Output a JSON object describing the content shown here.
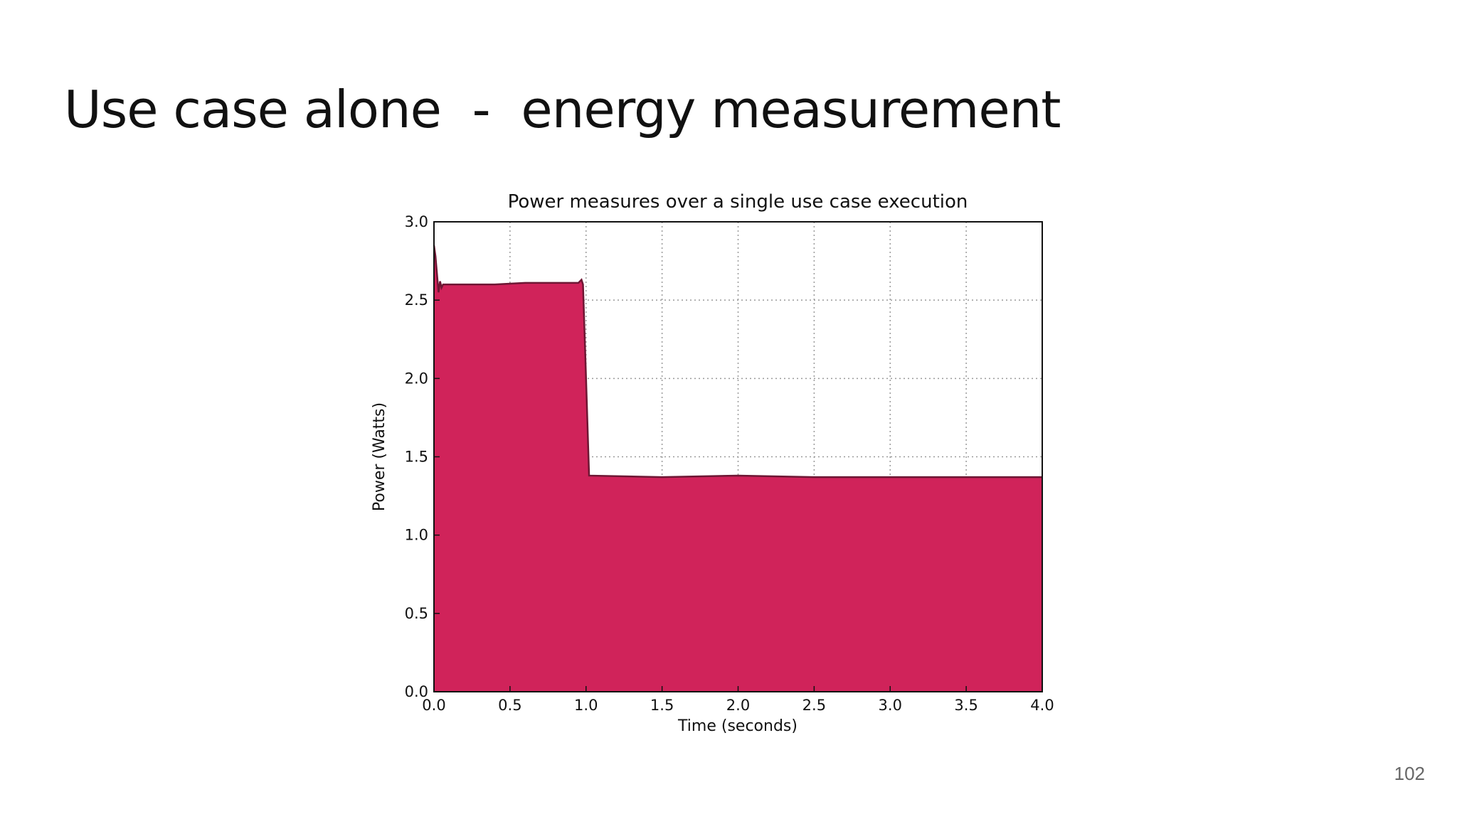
{
  "slide": {
    "title": "Use case alone  -  energy measurement",
    "page_number": "102"
  },
  "colors": {
    "fill": "#d0235a",
    "outline": "#6e1734",
    "grid": "#9a9a9a",
    "axis": "#111111"
  },
  "chart_data": {
    "type": "area",
    "title": "Power measures over a single use case execution",
    "xlabel": "Time (seconds)",
    "ylabel": "Power (Watts)",
    "xlim": [
      0.0,
      4.0
    ],
    "ylim": [
      0.0,
      3.0
    ],
    "xticks": [
      "0.0",
      "0.5",
      "1.0",
      "1.5",
      "2.0",
      "2.5",
      "3.0",
      "3.5",
      "4.0"
    ],
    "yticks": [
      "0.0",
      "0.5",
      "1.0",
      "1.5",
      "2.0",
      "2.5",
      "3.0"
    ],
    "grid": true,
    "x": [
      0.0,
      0.01,
      0.03,
      0.04,
      0.05,
      0.06,
      0.1,
      0.2,
      0.4,
      0.6,
      0.8,
      0.9,
      0.95,
      0.97,
      0.98,
      1.0,
      1.02,
      1.5,
      2.0,
      2.5,
      3.0,
      3.5,
      4.0
    ],
    "y": [
      2.85,
      2.78,
      2.55,
      2.62,
      2.58,
      2.6,
      2.6,
      2.6,
      2.6,
      2.61,
      2.61,
      2.61,
      2.61,
      2.63,
      2.6,
      2.0,
      1.38,
      1.37,
      1.38,
      1.37,
      1.37,
      1.37,
      1.37
    ]
  }
}
